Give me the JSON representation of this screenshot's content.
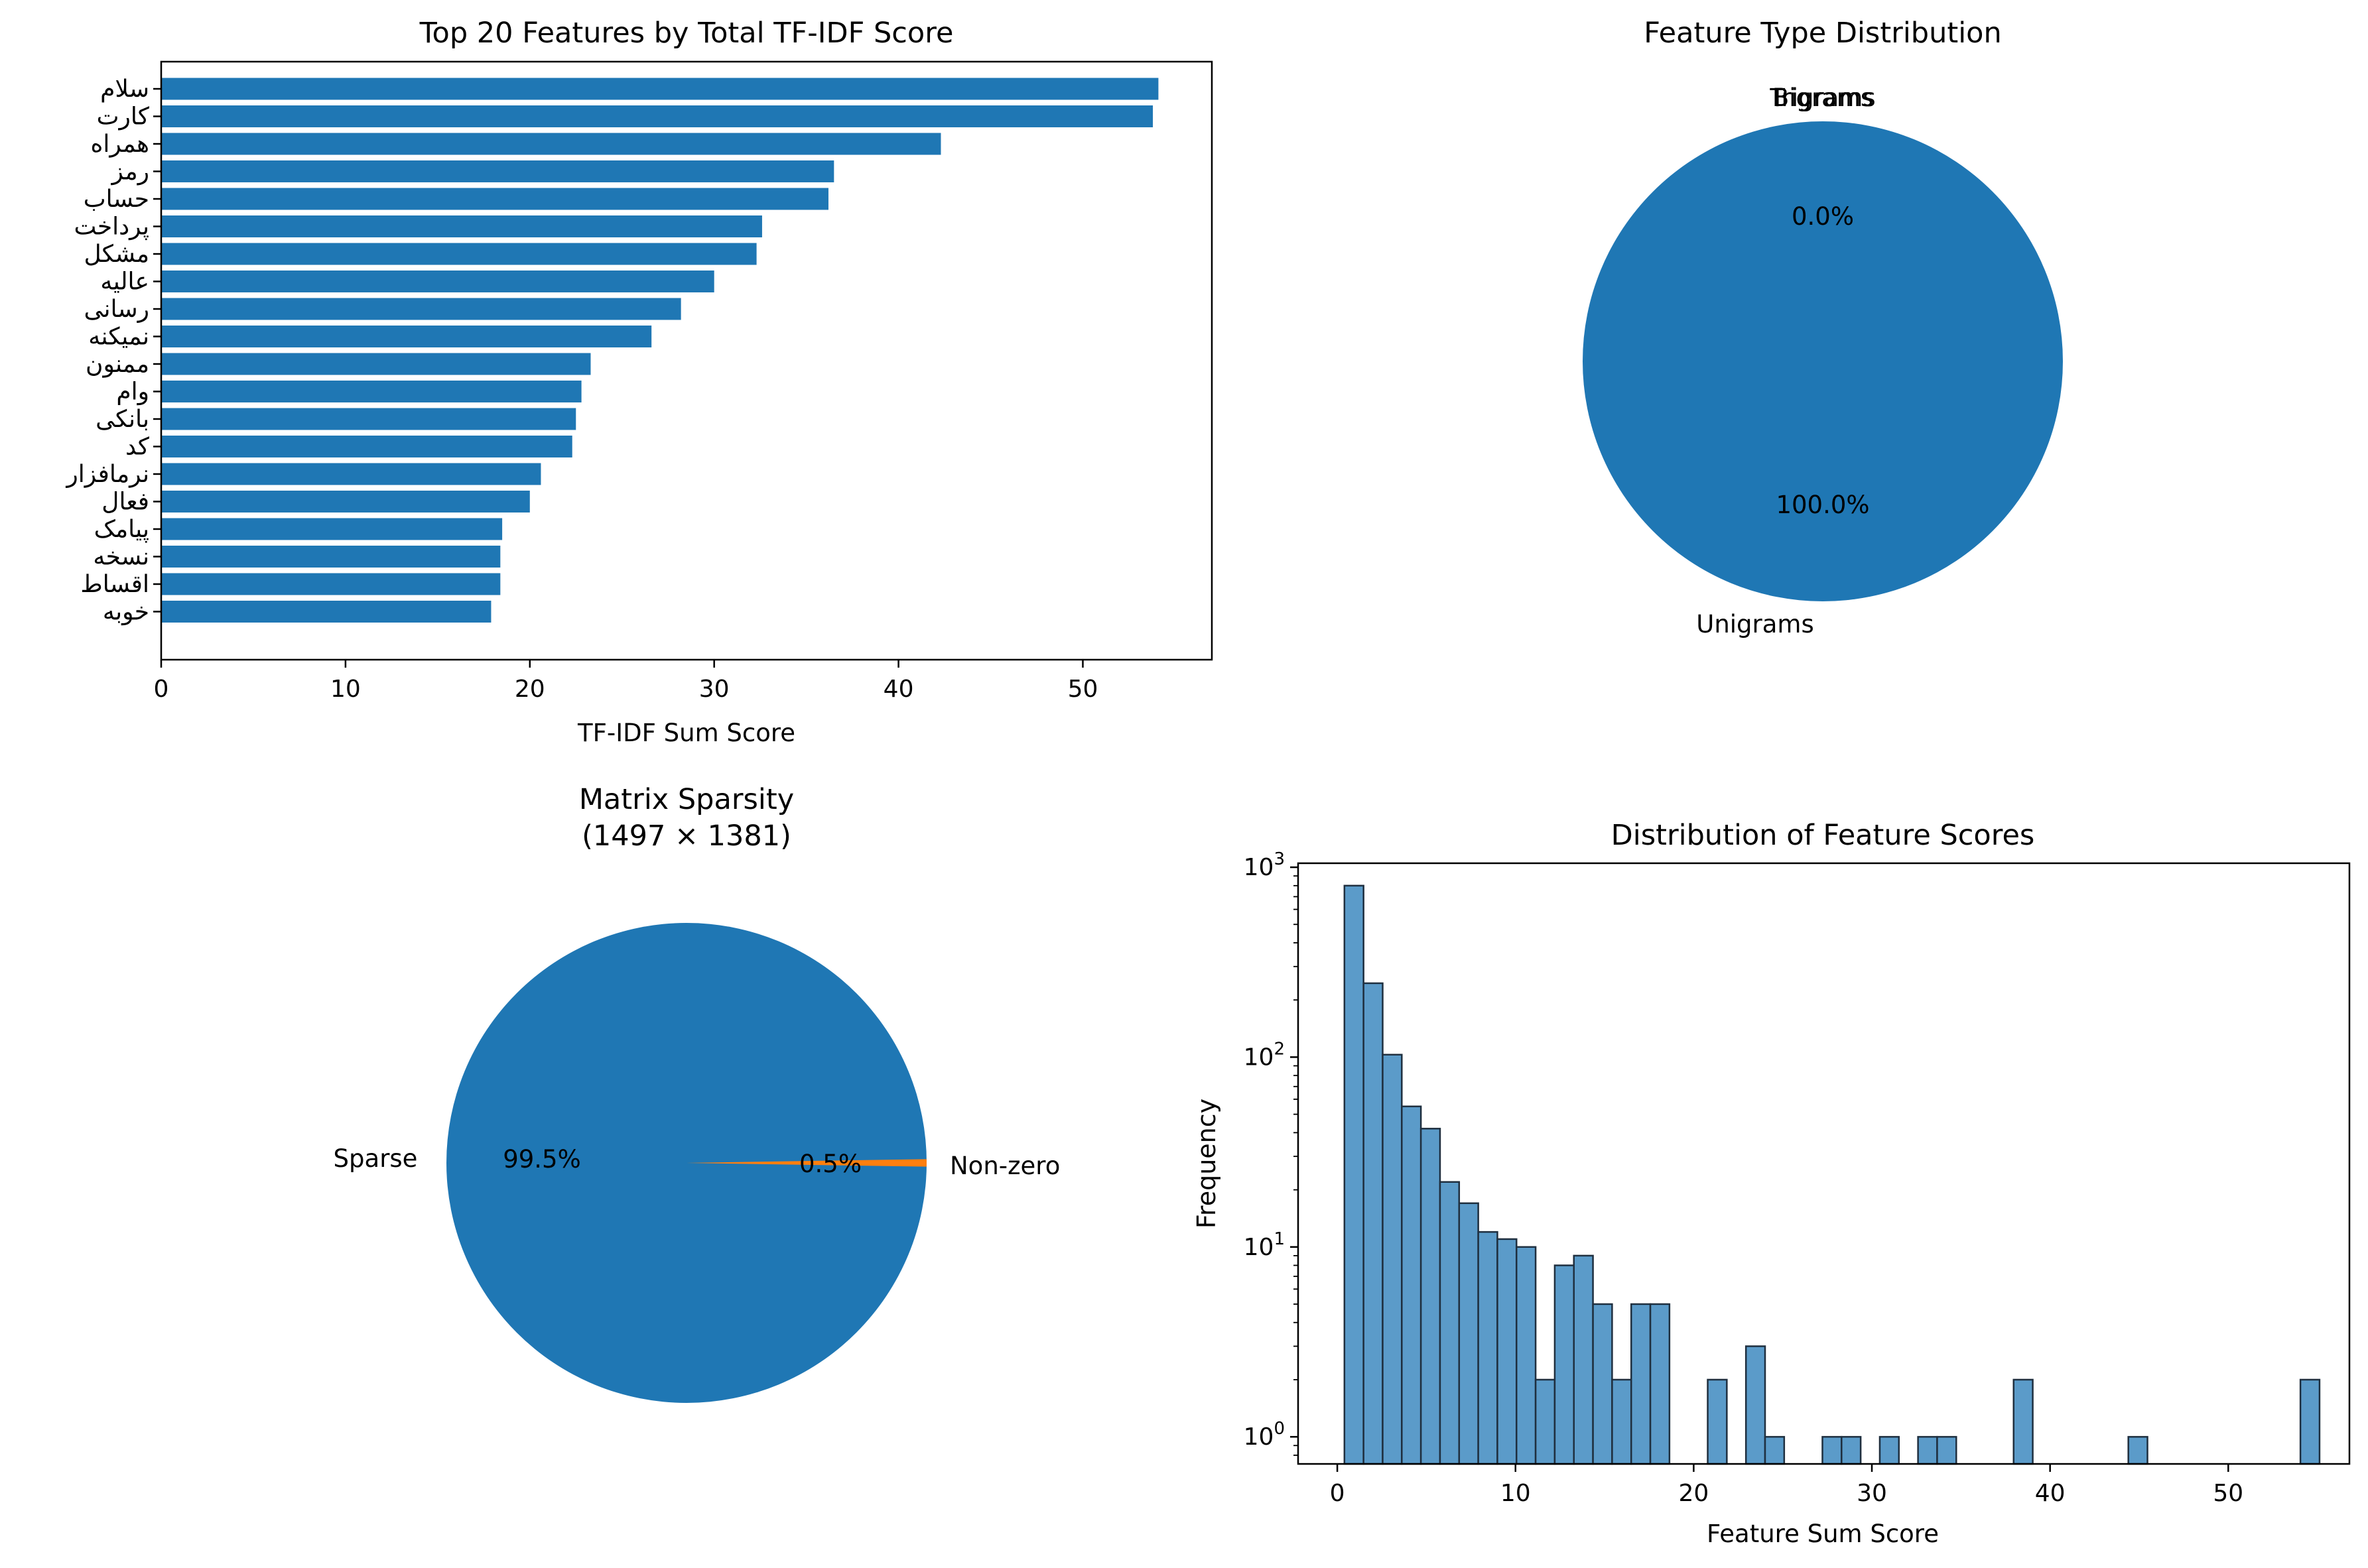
{
  "figure": {
    "background": "#ffffff",
    "bar_color": "#1f77b4",
    "secondary_color": "#ff7f0e",
    "hist_color": "#5b9bc9",
    "hist_edge": "#1f2f3f"
  },
  "chart_data": [
    {
      "type": "bar",
      "orientation": "horizontal",
      "title": "Top 20 Features by Total TF-IDF Score",
      "xlabel": "TF-IDF Sum Score",
      "ylabel": "",
      "xlim": [
        0,
        57
      ],
      "xticks": [
        0,
        10,
        20,
        30,
        40,
        50
      ],
      "categories": [
        "سلام",
        "کارت",
        "همراه",
        "رمز",
        "حساب",
        "پرداخت",
        "مشکل",
        "عالیه",
        "رسانی",
        "نمیکنه",
        "ممنون",
        "وام",
        "بانکی",
        "کد",
        "نرمافزار",
        "فعال",
        "پیامک",
        "نسخه",
        "اقساط",
        "خوبه"
      ],
      "values": [
        54.1,
        53.8,
        42.3,
        36.5,
        36.2,
        32.6,
        32.3,
        30.0,
        28.2,
        26.6,
        23.3,
        22.8,
        22.5,
        22.3,
        20.6,
        20.0,
        18.5,
        18.4,
        18.4,
        17.9
      ],
      "grid": false
    },
    {
      "type": "pie",
      "title": "Feature Type Distribution",
      "labels": [
        "Unigrams",
        "Bigrams",
        "Trigrams"
      ],
      "values": [
        100.0,
        0.0,
        0.0
      ],
      "autopct": [
        "100.0%",
        "0.0%",
        "0.0%"
      ],
      "colors": [
        "#1f77b4",
        "#ff7f0e",
        "#2ca02c"
      ]
    },
    {
      "type": "pie",
      "title": "Matrix Sparsity",
      "subtitle": "(1497 × 1381)",
      "labels": [
        "Sparse",
        "Non-zero"
      ],
      "values": [
        99.5,
        0.5
      ],
      "autopct": [
        "99.5%",
        "0.5%"
      ],
      "colors": [
        "#1f77b4",
        "#ff7f0e"
      ]
    },
    {
      "type": "histogram",
      "title": "Distribution of Feature Scores",
      "xlabel": "Feature Sum Score",
      "ylabel": "Frequency",
      "yscale": "log",
      "xlim": [
        -2.2,
        56.8
      ],
      "ylim": [
        0.72,
        1050
      ],
      "xticks": [
        0,
        10,
        20,
        30,
        40,
        50
      ],
      "yticks": [
        "10^0",
        "10^1",
        "10^2",
        "10^3"
      ],
      "bin_start": 0.4,
      "bin_width": 1.073,
      "counts": [
        800,
        245,
        103,
        55,
        42,
        22,
        17,
        12,
        11,
        10,
        2,
        8,
        9,
        5,
        2,
        5,
        5,
        0,
        0,
        2,
        0,
        3,
        1,
        0,
        0,
        1,
        1,
        0,
        1,
        0,
        1,
        1,
        0,
        0,
        0,
        2,
        0,
        0,
        0,
        0,
        0,
        1,
        0,
        0,
        0,
        0,
        0,
        0,
        0,
        0,
        2
      ]
    }
  ]
}
